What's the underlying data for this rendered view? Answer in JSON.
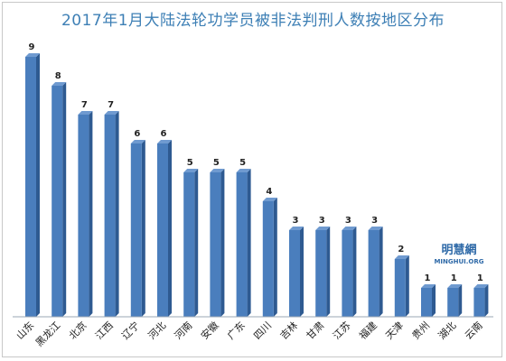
{
  "watermark": {
    "line1": "明慧網",
    "line2": "MINGHUI.ORG"
  },
  "chart_data": {
    "type": "bar",
    "title": "2017年1月大陆法轮功学员被非法判刑人数按地区分布",
    "categories": [
      "山东",
      "黑龙江",
      "北京",
      "江西",
      "辽宁",
      "河北",
      "河南",
      "安徽",
      "广东",
      "四川",
      "吉林",
      "甘肃",
      "江苏",
      "福建",
      "天津",
      "贵州",
      "湖北",
      "云南"
    ],
    "values": [
      9,
      8,
      7,
      7,
      6,
      6,
      5,
      5,
      5,
      4,
      3,
      3,
      3,
      3,
      2,
      1,
      1,
      1
    ],
    "xlabel": "",
    "ylabel": "",
    "ylim": [
      0,
      9
    ],
    "grid": false,
    "legend": "none",
    "colors": {
      "bar_front": "#4a7ebd",
      "bar_side": "#2e5a91",
      "bar_top": "#6f9ad0",
      "title": "#3d7fb5"
    }
  }
}
